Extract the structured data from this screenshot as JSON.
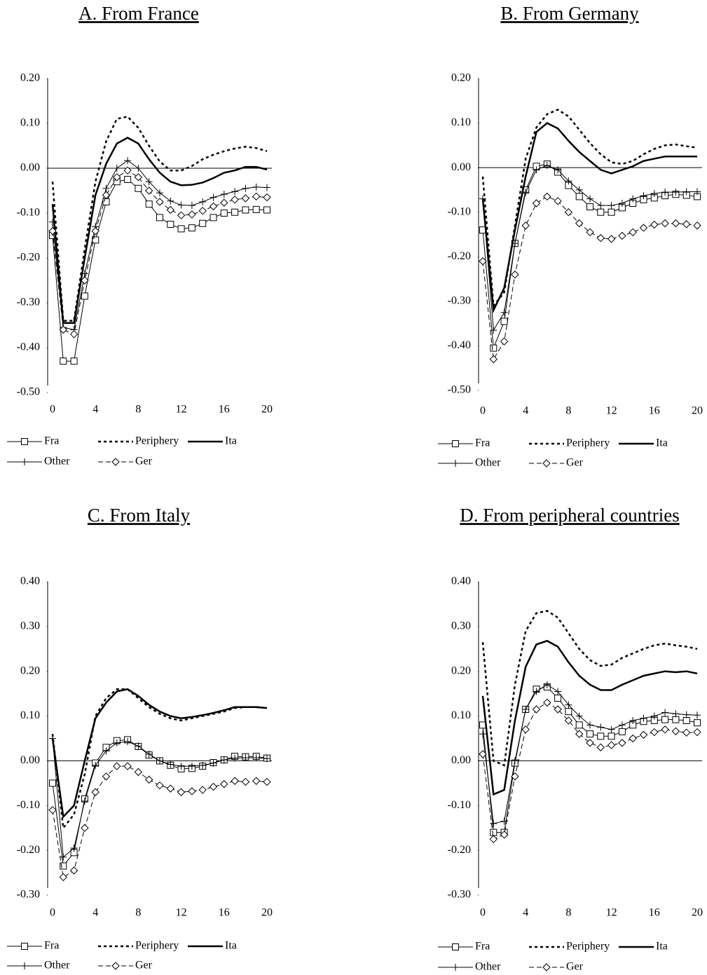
{
  "chart_data": [
    {
      "type": "line",
      "title": "A. From France",
      "x": [
        0,
        1,
        2,
        3,
        4,
        5,
        6,
        7,
        8,
        9,
        10,
        11,
        12,
        13,
        14,
        15,
        16,
        17,
        18,
        19,
        20
      ],
      "xlim": [
        0,
        20
      ],
      "xticks": [
        0,
        4,
        8,
        12,
        16,
        20
      ],
      "ylim": [
        -0.5,
        0.2
      ],
      "yticks": [
        {
          "value": -0.5,
          "label": "-0.50"
        },
        {
          "value": -0.4,
          "label": "-0.40"
        },
        {
          "value": -0.3,
          "label": "-0.30"
        },
        {
          "value": -0.2,
          "label": "-0.20"
        },
        {
          "value": -0.1,
          "label": "-0.10"
        },
        {
          "value": 0,
          "label": "0.00"
        },
        {
          "value": 0.1,
          "label": "0.10"
        },
        {
          "value": 0.2,
          "label": "0.20"
        }
      ],
      "series": [
        {
          "name": "Fra",
          "color": "#000000",
          "marker": "square",
          "line_style": "solid",
          "line_width": 1,
          "values": [
            -0.15,
            -0.43,
            -0.43,
            -0.285,
            -0.16,
            -0.075,
            -0.03,
            -0.025,
            -0.045,
            -0.08,
            -0.11,
            -0.125,
            -0.135,
            -0.133,
            -0.123,
            -0.11,
            -0.1,
            -0.098,
            -0.093,
            -0.092,
            -0.093
          ]
        },
        {
          "name": "Periphery",
          "color": "#000000",
          "marker": "none",
          "line_style": "dotted",
          "line_width": 2.5,
          "values": [
            -0.03,
            -0.34,
            -0.34,
            -0.18,
            -0.03,
            0.06,
            0.11,
            0.115,
            0.09,
            0.05,
            0.015,
            -0.005,
            -0.005,
            0.005,
            0.02,
            0.03,
            0.038,
            0.044,
            0.048,
            0.045,
            0.038
          ]
        },
        {
          "name": "Ita",
          "color": "#000000",
          "marker": "none",
          "line_style": "solid",
          "line_width": 2.5,
          "values": [
            -0.08,
            -0.345,
            -0.345,
            -0.2,
            -0.06,
            0.01,
            0.055,
            0.068,
            0.055,
            0.02,
            -0.01,
            -0.03,
            -0.038,
            -0.037,
            -0.032,
            -0.022,
            -0.01,
            -0.005,
            0.003,
            0.003,
            -0.003
          ]
        },
        {
          "name": "Other",
          "color": "#000000",
          "marker": "plus",
          "line_style": "solid",
          "line_width": 1,
          "values": [
            -0.12,
            -0.355,
            -0.36,
            -0.235,
            -0.13,
            -0.045,
            0.0,
            0.017,
            0.0,
            -0.03,
            -0.055,
            -0.073,
            -0.082,
            -0.083,
            -0.075,
            -0.065,
            -0.058,
            -0.052,
            -0.045,
            -0.042,
            -0.043
          ]
        },
        {
          "name": "Ger",
          "color": "#000000",
          "marker": "diamond",
          "line_style": "dashed",
          "line_width": 1,
          "values": [
            -0.14,
            -0.36,
            -0.37,
            -0.25,
            -0.14,
            -0.06,
            -0.02,
            -0.005,
            -0.02,
            -0.05,
            -0.075,
            -0.093,
            -0.105,
            -0.103,
            -0.095,
            -0.085,
            -0.077,
            -0.07,
            -0.067,
            -0.063,
            -0.065
          ]
        }
      ]
    },
    {
      "type": "line",
      "title": "B. From Germany",
      "x": [
        0,
        1,
        2,
        3,
        4,
        5,
        6,
        7,
        8,
        9,
        10,
        11,
        12,
        13,
        14,
        15,
        16,
        17,
        18,
        19,
        20
      ],
      "xlim": [
        0,
        20
      ],
      "xticks": [
        0,
        4,
        8,
        12,
        16,
        20
      ],
      "ylim": [
        -0.5,
        0.2
      ],
      "yticks": [
        {
          "value": -0.5,
          "label": "-0.50"
        },
        {
          "value": -0.4,
          "label": "-0.40"
        },
        {
          "value": -0.3,
          "label": "-0.30"
        },
        {
          "value": -0.2,
          "label": "-0.20"
        },
        {
          "value": -0.1,
          "label": "-0.10"
        },
        {
          "value": 0,
          "label": "0.00"
        },
        {
          "value": 0.1,
          "label": "0.10"
        },
        {
          "value": 0.2,
          "label": "0.20"
        }
      ],
      "series": [
        {
          "name": "Fra",
          "color": "#000000",
          "marker": "square",
          "line_style": "solid",
          "line_width": 1,
          "values": [
            -0.14,
            -0.405,
            -0.345,
            -0.17,
            -0.05,
            0.003,
            0.008,
            -0.01,
            -0.04,
            -0.065,
            -0.088,
            -0.1,
            -0.1,
            -0.09,
            -0.08,
            -0.072,
            -0.068,
            -0.063,
            -0.06,
            -0.062,
            -0.065
          ]
        },
        {
          "name": "Periphery",
          "color": "#000000",
          "marker": "none",
          "line_style": "dotted",
          "line_width": 2.5,
          "values": [
            -0.02,
            -0.31,
            -0.28,
            -0.13,
            0.02,
            0.09,
            0.12,
            0.13,
            0.115,
            0.085,
            0.055,
            0.03,
            0.012,
            0.008,
            0.015,
            0.03,
            0.042,
            0.05,
            0.052,
            0.048,
            0.045
          ]
        },
        {
          "name": "Ita",
          "color": "#000000",
          "marker": "none",
          "line_style": "solid",
          "line_width": 2.5,
          "values": [
            -0.07,
            -0.32,
            -0.27,
            -0.14,
            -0.02,
            0.08,
            0.1,
            0.088,
            0.06,
            0.035,
            0.015,
            -0.005,
            -0.013,
            -0.005,
            0.003,
            0.015,
            0.02,
            0.025,
            0.025,
            0.025,
            0.025
          ]
        },
        {
          "name": "Other",
          "color": "#000000",
          "marker": "plus",
          "line_style": "solid",
          "line_width": 1,
          "values": [
            -0.07,
            -0.365,
            -0.325,
            -0.17,
            -0.055,
            -0.005,
            0.005,
            -0.005,
            -0.03,
            -0.05,
            -0.07,
            -0.085,
            -0.085,
            -0.08,
            -0.07,
            -0.063,
            -0.058,
            -0.055,
            -0.055,
            -0.054,
            -0.054
          ]
        },
        {
          "name": "Ger",
          "color": "#000000",
          "marker": "diamond",
          "line_style": "dashed",
          "line_width": 1,
          "values": [
            -0.21,
            -0.43,
            -0.39,
            -0.24,
            -0.13,
            -0.08,
            -0.065,
            -0.075,
            -0.1,
            -0.125,
            -0.145,
            -0.158,
            -0.16,
            -0.153,
            -0.145,
            -0.135,
            -0.128,
            -0.125,
            -0.125,
            -0.127,
            -0.13
          ]
        }
      ]
    },
    {
      "type": "line",
      "title": "C. From Italy",
      "x": [
        0,
        1,
        2,
        3,
        4,
        5,
        6,
        7,
        8,
        9,
        10,
        11,
        12,
        13,
        14,
        15,
        16,
        17,
        18,
        19,
        20
      ],
      "xlim": [
        0,
        20
      ],
      "xticks": [
        0,
        4,
        8,
        12,
        16,
        20
      ],
      "ylim": [
        -0.3,
        0.4
      ],
      "yticks": [
        {
          "value": -0.3,
          "label": "-0.30"
        },
        {
          "value": -0.2,
          "label": "-0.20"
        },
        {
          "value": -0.1,
          "label": "-0.10"
        },
        {
          "value": 0,
          "label": "0.00"
        },
        {
          "value": 0.1,
          "label": "0.10"
        },
        {
          "value": 0.2,
          "label": "0.20"
        },
        {
          "value": 0.3,
          "label": "0.30"
        },
        {
          "value": 0.4,
          "label": "0.40"
        }
      ],
      "series": [
        {
          "name": "Fra",
          "color": "#000000",
          "marker": "square",
          "line_style": "solid",
          "line_width": 1,
          "values": [
            -0.05,
            -0.235,
            -0.205,
            -0.085,
            -0.005,
            0.03,
            0.045,
            0.047,
            0.032,
            0.013,
            0.0,
            -0.01,
            -0.018,
            -0.017,
            -0.012,
            -0.004,
            0.002,
            0.01,
            0.009,
            0.01,
            0.006
          ]
        },
        {
          "name": "Periphery",
          "color": "#000000",
          "marker": "none",
          "line_style": "dotted",
          "line_width": 2.5,
          "values": [
            0.06,
            -0.15,
            -0.12,
            -0.03,
            0.1,
            0.14,
            0.16,
            0.16,
            0.14,
            0.12,
            0.105,
            0.095,
            0.09,
            0.095,
            0.1,
            0.105,
            0.11,
            0.118,
            0.12,
            0.12,
            0.118
          ]
        },
        {
          "name": "Ita",
          "color": "#000000",
          "marker": "none",
          "line_style": "solid",
          "line_width": 2.5,
          "values": [
            0.05,
            -0.125,
            -0.1,
            0.0,
            0.095,
            0.13,
            0.155,
            0.16,
            0.145,
            0.125,
            0.11,
            0.1,
            0.095,
            0.098,
            0.102,
            0.107,
            0.113,
            0.12,
            0.12,
            0.12,
            0.118
          ]
        },
        {
          "name": "Other",
          "color": "#000000",
          "marker": "plus",
          "line_style": "solid",
          "line_width": 1,
          "values": [
            0.05,
            -0.215,
            -0.195,
            -0.09,
            -0.01,
            0.022,
            0.04,
            0.043,
            0.033,
            0.015,
            0.0,
            -0.008,
            -0.012,
            -0.012,
            -0.01,
            -0.005,
            0.002,
            0.006,
            0.007,
            0.007,
            0.005
          ]
        },
        {
          "name": "Ger",
          "color": "#000000",
          "marker": "diamond",
          "line_style": "dashed",
          "line_width": 1,
          "values": [
            -0.11,
            -0.26,
            -0.245,
            -0.15,
            -0.07,
            -0.035,
            -0.012,
            -0.012,
            -0.025,
            -0.042,
            -0.055,
            -0.062,
            -0.07,
            -0.068,
            -0.065,
            -0.058,
            -0.052,
            -0.045,
            -0.047,
            -0.045,
            -0.047
          ]
        }
      ]
    },
    {
      "type": "line",
      "title": "D. From peripheral countries",
      "x": [
        0,
        1,
        2,
        3,
        4,
        5,
        6,
        7,
        8,
        9,
        10,
        11,
        12,
        13,
        14,
        15,
        16,
        17,
        18,
        19,
        20
      ],
      "xlim": [
        0,
        20
      ],
      "xticks": [
        0,
        4,
        8,
        12,
        16,
        20
      ],
      "ylim": [
        -0.3,
        0.4
      ],
      "yticks": [
        {
          "value": -0.3,
          "label": "-0.30"
        },
        {
          "value": -0.2,
          "label": "-0.20"
        },
        {
          "value": -0.1,
          "label": "-0.10"
        },
        {
          "value": 0,
          "label": "0.00"
        },
        {
          "value": 0.1,
          "label": "0.10"
        },
        {
          "value": 0.2,
          "label": "0.20"
        },
        {
          "value": 0.3,
          "label": "0.30"
        },
        {
          "value": 0.4,
          "label": "0.40"
        }
      ],
      "series": [
        {
          "name": "Fra",
          "color": "#000000",
          "marker": "square",
          "line_style": "solid",
          "line_width": 1,
          "values": [
            0.08,
            -0.16,
            -0.16,
            -0.005,
            0.115,
            0.16,
            0.165,
            0.14,
            0.11,
            0.08,
            0.06,
            0.055,
            0.055,
            0.065,
            0.08,
            0.088,
            0.09,
            0.092,
            0.092,
            0.09,
            0.085
          ]
        },
        {
          "name": "Periphery",
          "color": "#000000",
          "marker": "none",
          "line_style": "dotted",
          "line_width": 2.5,
          "values": [
            0.265,
            0.0,
            -0.01,
            0.17,
            0.29,
            0.33,
            0.335,
            0.32,
            0.285,
            0.25,
            0.225,
            0.212,
            0.215,
            0.23,
            0.24,
            0.25,
            0.258,
            0.262,
            0.258,
            0.255,
            0.25
          ]
        },
        {
          "name": "Ita",
          "color": "#000000",
          "marker": "none",
          "line_style": "solid",
          "line_width": 2.5,
          "values": [
            0.145,
            -0.075,
            -0.065,
            0.09,
            0.21,
            0.26,
            0.268,
            0.255,
            0.22,
            0.19,
            0.17,
            0.158,
            0.158,
            0.17,
            0.18,
            0.19,
            0.195,
            0.2,
            0.198,
            0.2,
            0.195
          ]
        },
        {
          "name": "Other",
          "color": "#000000",
          "marker": "plus",
          "line_style": "solid",
          "line_width": 1,
          "values": [
            0.06,
            -0.14,
            -0.135,
            0.0,
            0.115,
            0.155,
            0.17,
            0.155,
            0.125,
            0.1,
            0.08,
            0.075,
            0.07,
            0.08,
            0.09,
            0.095,
            0.1,
            0.108,
            0.105,
            0.103,
            0.102
          ]
        },
        {
          "name": "Ger",
          "color": "#000000",
          "marker": "diamond",
          "line_style": "dashed",
          "line_width": 1,
          "values": [
            0.015,
            -0.175,
            -0.165,
            -0.035,
            0.07,
            0.115,
            0.13,
            0.115,
            0.09,
            0.06,
            0.04,
            0.03,
            0.035,
            0.04,
            0.05,
            0.058,
            0.064,
            0.07,
            0.066,
            0.063,
            0.064
          ]
        }
      ]
    }
  ]
}
